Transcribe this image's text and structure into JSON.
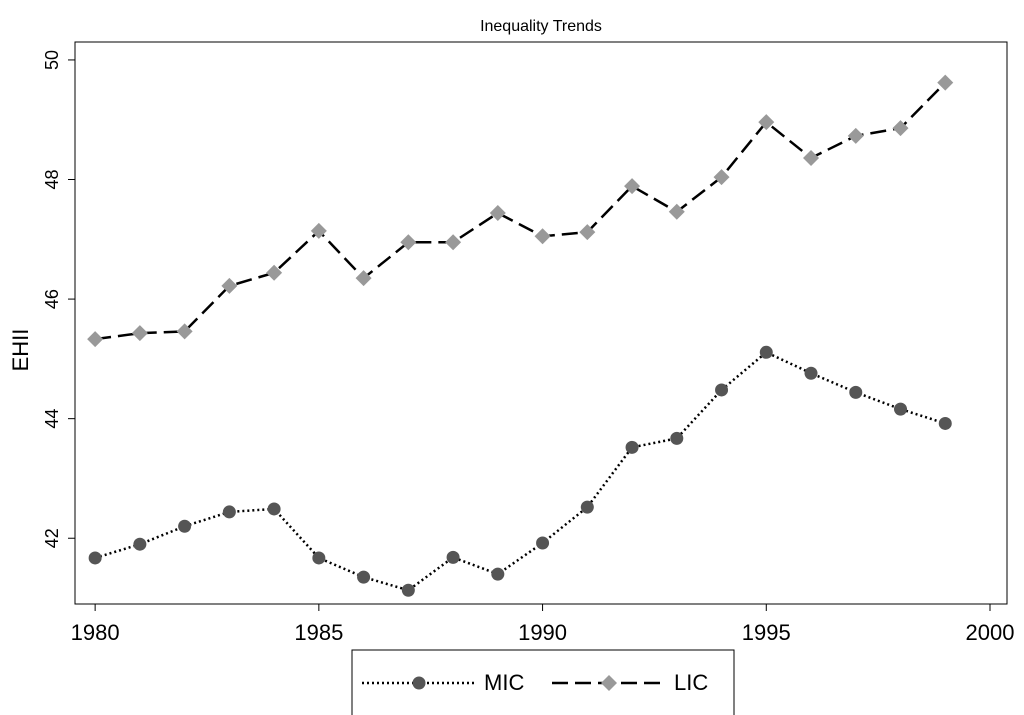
{
  "chart_data": {
    "type": "line",
    "title": "Inequality Trends",
    "y_label": "EHII",
    "x": [
      1980,
      1981,
      1982,
      1983,
      1984,
      1985,
      1986,
      1987,
      1988,
      1989,
      1990,
      1991,
      1992,
      1993,
      1994,
      1995,
      1996,
      1997,
      1998,
      1999
    ],
    "series": [
      {
        "name": "MIC",
        "color": "#555555",
        "marker": "circle",
        "line_style": "dotted",
        "values": [
          41.67,
          41.9,
          42.2,
          42.44,
          42.49,
          41.67,
          41.35,
          41.13,
          41.68,
          41.4,
          41.92,
          42.52,
          43.52,
          43.67,
          44.48,
          45.11,
          44.76,
          44.44,
          44.16,
          43.92
        ]
      },
      {
        "name": "LIC",
        "color": "#999999",
        "marker": "diamond",
        "line_style": "dashed",
        "values": [
          45.33,
          45.43,
          45.46,
          46.22,
          46.44,
          47.14,
          46.35,
          46.95,
          46.95,
          47.44,
          47.05,
          47.12,
          47.89,
          47.46,
          48.04,
          48.96,
          48.36,
          48.73,
          48.86,
          49.62
        ]
      }
    ],
    "xlim": [
      1979.55,
      2000.38
    ],
    "xticks": [
      1980,
      1985,
      1990,
      1995,
      2000
    ],
    "ylim": [
      40.9,
      50.3
    ],
    "yticks": [
      42,
      44,
      46,
      48,
      50
    ],
    "grid": false,
    "legend": "bottom"
  }
}
